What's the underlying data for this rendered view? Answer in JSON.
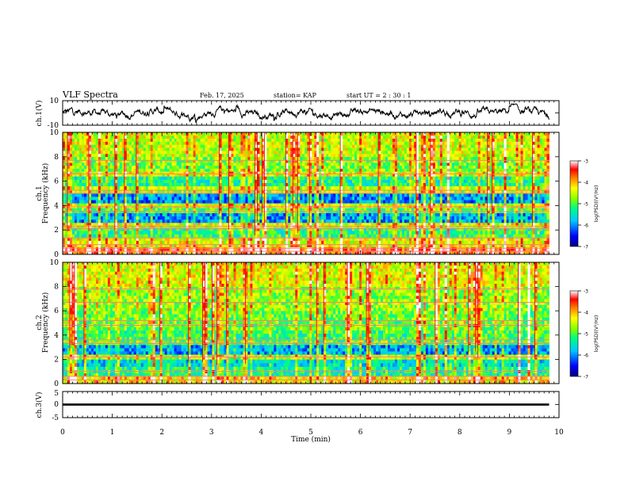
{
  "header": {
    "title": "VLF Spectra",
    "date": "Feb. 17, 2025",
    "station": "station= KAP",
    "start": "start  UT =   2  : 30 : 1"
  },
  "colors": {
    "spectrum_scale": [
      "#000080",
      "#0000ff",
      "#00c8ff",
      "#00ff80",
      "#80ff00",
      "#ffff00",
      "#ff8000",
      "#ff0000",
      "#ffffff"
    ]
  },
  "chart_data": [
    {
      "type": "line",
      "name": "ch1-waveform",
      "ylabel": "ch.1(V)",
      "ylim": [
        -10,
        10
      ],
      "yticks": [
        "10",
        "-10"
      ],
      "xlim": [
        0,
        10
      ],
      "trace_envelope_V": [
        -6,
        6
      ]
    },
    {
      "type": "heatmap",
      "name": "ch1-spectrogram",
      "ylabel_top": "ch.1",
      "ylabel": "Frequency (kHz)",
      "ylim": [
        0,
        10
      ],
      "yticks": [
        "0",
        "2",
        "4",
        "6",
        "8",
        "10"
      ],
      "xlim": [
        0,
        10
      ],
      "data_xmax": 9.8,
      "colorbar": {
        "label": "log(PSD)(V²/Hz)",
        "ticks": [
          "-3",
          "-4",
          "-5",
          "-6",
          "-7"
        ],
        "range": [
          -7,
          -3
        ]
      },
      "bands_kHz": [
        {
          "from": 0.0,
          "to": 0.6,
          "level": -3.6
        },
        {
          "from": 0.6,
          "to": 1.4,
          "level": -4.4
        },
        {
          "from": 1.4,
          "to": 2.2,
          "level": -5.2
        },
        {
          "from": 2.2,
          "to": 2.6,
          "level": -4.4
        },
        {
          "from": 2.6,
          "to": 3.4,
          "level": -5.9
        },
        {
          "from": 3.4,
          "to": 3.8,
          "level": -5.0
        },
        {
          "from": 3.8,
          "to": 4.2,
          "level": -4.5
        },
        {
          "from": 4.2,
          "to": 5.0,
          "level": -6.0
        },
        {
          "from": 5.0,
          "to": 5.6,
          "level": -4.6
        },
        {
          "from": 5.6,
          "to": 6.4,
          "level": -5.3
        },
        {
          "from": 6.4,
          "to": 6.8,
          "level": -4.4
        },
        {
          "from": 6.8,
          "to": 8.0,
          "level": -4.8
        },
        {
          "from": 8.0,
          "to": 10.0,
          "level": -4.5
        }
      ],
      "tones_kHz": [
        0.25,
        0.5,
        0.8,
        1.35,
        2.1,
        2.3,
        3.5,
        3.9,
        5.0,
        5.25,
        6.6,
        7.7
      ]
    },
    {
      "type": "heatmap",
      "name": "ch2-spectrogram",
      "ylabel_top": "ch.2",
      "ylabel": "Frequency (kHz)",
      "ylim": [
        0,
        10
      ],
      "yticks": [
        "0",
        "2",
        "4",
        "6",
        "8",
        "10"
      ],
      "xlim": [
        0,
        10
      ],
      "data_xmax": 9.8,
      "colorbar": {
        "label": "log(PSD)(V²/Hz)",
        "ticks": [
          "-3",
          "-4",
          "-5",
          "-6",
          "-7"
        ],
        "range": [
          -7,
          -3
        ]
      },
      "bands_kHz": [
        {
          "from": 0.0,
          "to": 0.6,
          "level": -4.2
        },
        {
          "from": 0.6,
          "to": 1.4,
          "level": -5.3
        },
        {
          "from": 1.4,
          "to": 2.0,
          "level": -5.6
        },
        {
          "from": 2.0,
          "to": 2.4,
          "level": -4.6
        },
        {
          "from": 2.4,
          "to": 3.2,
          "level": -5.9
        },
        {
          "from": 3.2,
          "to": 3.6,
          "level": -5.0
        },
        {
          "from": 3.6,
          "to": 4.4,
          "level": -5.1
        },
        {
          "from": 4.4,
          "to": 6.0,
          "level": -4.9
        },
        {
          "from": 6.0,
          "to": 8.0,
          "level": -4.7
        },
        {
          "from": 8.0,
          "to": 10.0,
          "level": -4.4
        }
      ],
      "tones_kHz": [
        0.3,
        0.6,
        1.0,
        2.2,
        3.3,
        3.6,
        4.8,
        5.2,
        6.7,
        7.8
      ]
    },
    {
      "type": "line",
      "name": "ch3-waveform",
      "ylabel": "ch.3(V)",
      "ylim": [
        -5,
        5
      ],
      "yticks": [
        "5",
        "0",
        "-5"
      ],
      "xlim": [
        0,
        10
      ],
      "xlabel": "Time (min)",
      "xticks": [
        "0",
        "1",
        "2",
        "3",
        "4",
        "5",
        "6",
        "7",
        "8",
        "9",
        "10"
      ],
      "trace_band_V": [
        -0.4,
        0.4
      ]
    }
  ]
}
